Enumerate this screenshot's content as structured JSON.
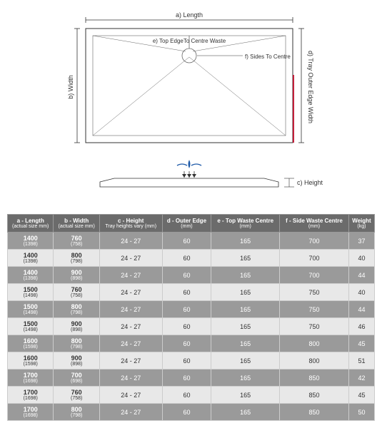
{
  "diagram": {
    "labels": {
      "a": "a) Length",
      "b": "b) Width",
      "c": "c) Height",
      "d": "d) Tray Outer Edge Width",
      "e": "e) Top EdgeTo Centre Waste",
      "f": "f) Sides To Centre"
    },
    "colors": {
      "outline": "#333333",
      "guides": "#666666",
      "accent": "#c41e3a",
      "water": "#1e5aa8"
    }
  },
  "table": {
    "headers": [
      {
        "main": "a - Length",
        "sub": "(actual size mm)"
      },
      {
        "main": "b - Width",
        "sub": "(actual size mm)"
      },
      {
        "main": "c - Height",
        "sub": "Tray heights vary (mm)"
      },
      {
        "main": "d - Outer Edge",
        "sub": "(mm)"
      },
      {
        "main": "e - Top Waste Centre",
        "sub": "(mm)"
      },
      {
        "main": "f - Side Waste Centre",
        "sub": "(mm)"
      },
      {
        "main": "Weight",
        "sub": "(kg)"
      }
    ],
    "rows": [
      {
        "a": "1400",
        "a2": "(1398)",
        "b": "760",
        "b2": "(758)",
        "c": "24 - 27",
        "d": "60",
        "e": "165",
        "f": "700",
        "w": "37"
      },
      {
        "a": "1400",
        "a2": "(1398)",
        "b": "800",
        "b2": "(798)",
        "c": "24 - 27",
        "d": "60",
        "e": "165",
        "f": "700",
        "w": "40"
      },
      {
        "a": "1400",
        "a2": "(1398)",
        "b": "900",
        "b2": "(898)",
        "c": "24 - 27",
        "d": "60",
        "e": "165",
        "f": "700",
        "w": "44"
      },
      {
        "a": "1500",
        "a2": "(1498)",
        "b": "760",
        "b2": "(758)",
        "c": "24 - 27",
        "d": "60",
        "e": "165",
        "f": "750",
        "w": "40"
      },
      {
        "a": "1500",
        "a2": "(1498)",
        "b": "800",
        "b2": "(798)",
        "c": "24 - 27",
        "d": "60",
        "e": "165",
        "f": "750",
        "w": "44"
      },
      {
        "a": "1500",
        "a2": "(1498)",
        "b": "900",
        "b2": "(898)",
        "c": "24 - 27",
        "d": "60",
        "e": "165",
        "f": "750",
        "w": "46"
      },
      {
        "a": "1600",
        "a2": "(1598)",
        "b": "800",
        "b2": "(798)",
        "c": "24 - 27",
        "d": "60",
        "e": "165",
        "f": "800",
        "w": "45"
      },
      {
        "a": "1600",
        "a2": "(1598)",
        "b": "900",
        "b2": "(898)",
        "c": "24 - 27",
        "d": "60",
        "e": "165",
        "f": "800",
        "w": "51"
      },
      {
        "a": "1700",
        "a2": "(1698)",
        "b": "700",
        "b2": "(698)",
        "c": "24 - 27",
        "d": "60",
        "e": "165",
        "f": "850",
        "w": "42"
      },
      {
        "a": "1700",
        "a2": "(1698)",
        "b": "760",
        "b2": "(758)",
        "c": "24 - 27",
        "d": "60",
        "e": "165",
        "f": "850",
        "w": "45"
      },
      {
        "a": "1700",
        "a2": "(1698)",
        "b": "800",
        "b2": "(798)",
        "c": "24 - 27",
        "d": "60",
        "e": "165",
        "f": "850",
        "w": "50"
      }
    ]
  }
}
